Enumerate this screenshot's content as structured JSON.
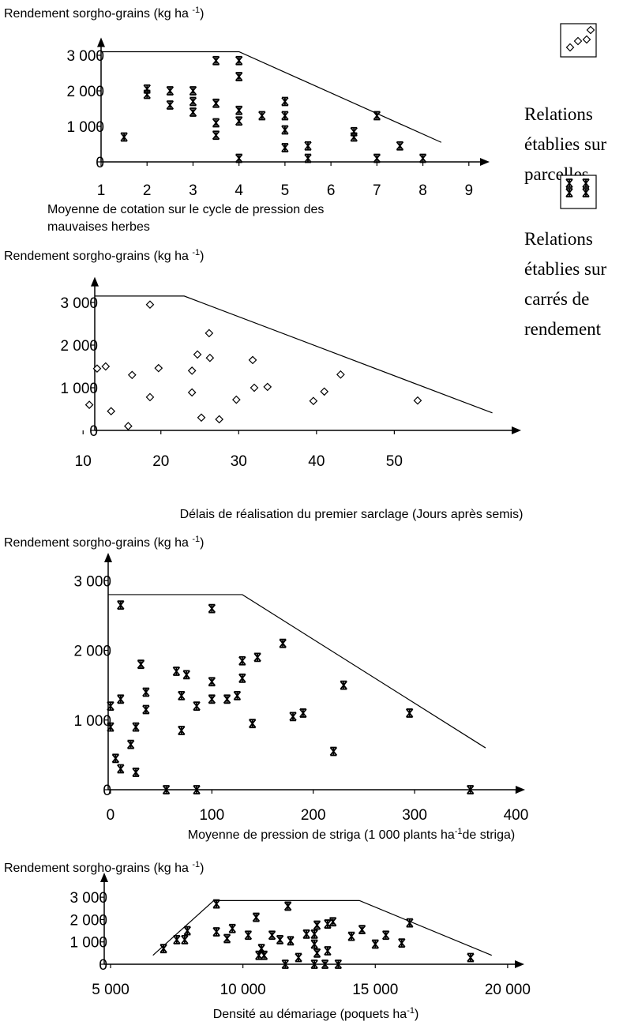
{
  "chart_data": [
    {
      "type": "scatter",
      "ylabel": [
        "Rendement sorgho-grains (kg ha ",
        "-1",
        ")"
      ],
      "xlabel": [
        [
          "Moyenne de cotation sur le cycle de pression des"
        ],
        [
          "mauvaises herbes"
        ]
      ],
      "xlim": [
        1,
        9.45
      ],
      "ylim": [
        0,
        3500
      ],
      "xticks": [
        1,
        2,
        3,
        4,
        5,
        6,
        7,
        8,
        9
      ],
      "yticks": [
        0,
        {
          "value": 1000,
          "label": "1 000"
        },
        {
          "value": 2000,
          "label": "2 000"
        },
        {
          "value": 3000,
          "label": "3 000"
        }
      ],
      "boundary": {
        "x": [
          1,
          4,
          8.4
        ],
        "y": [
          3100,
          3100,
          550
        ]
      },
      "series": [
        {
          "marker": "asterisk",
          "color": "#000000",
          "x": [
            1.5,
            2,
            2,
            2.5,
            2.5,
            3,
            3,
            3,
            3.5,
            3.5,
            3.5,
            3.5,
            4,
            4,
            4,
            4,
            4,
            4.5,
            5,
            5,
            5,
            5,
            5.5,
            5.5,
            6.5,
            6.5,
            7,
            7,
            7.5,
            8
          ],
          "y": [
            700,
            1900,
            2050,
            2000,
            1600,
            2000,
            1700,
            1400,
            2850,
            1650,
            1100,
            750,
            2850,
            2400,
            1450,
            1150,
            100,
            1300,
            1700,
            1300,
            900,
            400,
            450,
            100,
            850,
            700,
            1300,
            100,
            450,
            100
          ]
        }
      ]
    },
    {
      "type": "scatter",
      "ylabel": [
        "Rendement sorgho-grains (kg ha ",
        "-1",
        ")"
      ],
      "xlabel": [
        [
          "Délais de réalisation du premier sarclage (Jours après semis)"
        ]
      ],
      "xlim": [
        11.5,
        66.3
      ],
      "ylim": [
        0,
        3600
      ],
      "xticks": [
        10,
        20,
        30,
        40,
        50
      ],
      "yticks": [
        0,
        {
          "value": 1000,
          "label": "1 000"
        },
        {
          "value": 2000,
          "label": "2 000"
        },
        {
          "value": 3000,
          "label": "3 000"
        }
      ],
      "boundary": {
        "x": [
          11.5,
          23,
          62.6
        ],
        "y": [
          3150,
          3150,
          410
        ]
      },
      "series": [
        {
          "marker": "diamond",
          "color": "#000000",
          "x": [
            10.8,
            11.8,
            12.9,
            13.6,
            15.8,
            16.3,
            18.6,
            18.6,
            19.7,
            24,
            24,
            24.7,
            25.2,
            26.2,
            26.3,
            27.5,
            29.7,
            31.8,
            32,
            33.7,
            39.6,
            41,
            43.1,
            53
          ],
          "y": [
            600,
            1450,
            1500,
            450,
            100,
            1300,
            2950,
            780,
            1460,
            1400,
            890,
            1780,
            300,
            2280,
            1700,
            260,
            720,
            1650,
            1000,
            1020,
            690,
            910,
            1310,
            700
          ]
        }
      ]
    },
    {
      "type": "scatter",
      "ylabel": [
        "Rendement sorgho-grains (kg ha ",
        "-1",
        ")"
      ],
      "xlabel": [
        [
          "Moyenne de pression de striga (1 000 plants ha",
          "-1",
          "de striga)"
        ]
      ],
      "xlim": [
        -2.3,
        409
      ],
      "ylim": [
        0,
        3400
      ],
      "xticks": [
        0,
        100,
        200,
        300,
        400
      ],
      "yticks": [
        0,
        {
          "value": 1000,
          "label": "1 000"
        },
        {
          "value": 2000,
          "label": "2 000"
        },
        {
          "value": 3000,
          "label": "3 000"
        }
      ],
      "boundary": {
        "x": [
          -2.3,
          130,
          370
        ],
        "y": [
          2800,
          2800,
          600
        ]
      },
      "series": [
        {
          "marker": "asterisk",
          "color": "#000000",
          "x": [
            10,
            100,
            0,
            10,
            0,
            5,
            20,
            25,
            10,
            25,
            30,
            35,
            35,
            55,
            65,
            70,
            70,
            75,
            85,
            85,
            100,
            100,
            115,
            125,
            130,
            130,
            140,
            145,
            170,
            180,
            190,
            220,
            230,
            295,
            355
          ],
          "y": [
            2650,
            2600,
            1200,
            1300,
            900,
            450,
            650,
            900,
            300,
            250,
            1800,
            1400,
            1150,
            0,
            1700,
            1350,
            850,
            1650,
            1200,
            0,
            1550,
            1300,
            1300,
            1350,
            1600,
            1850,
            950,
            1900,
            2100,
            1050,
            1100,
            550,
            1500,
            1100,
            0
          ]
        }
      ]
    },
    {
      "type": "scatter",
      "ylabel": [
        "Rendement sorgho-grains (kg ha ",
        "-1",
        ")"
      ],
      "xlabel": [
        [
          "Densité au démariage (poquets ha",
          "-1",
          ")"
        ]
      ],
      "xlim": [
        4760,
        20630
      ],
      "ylim": [
        0,
        4100
      ],
      "xticks": [
        {
          "value": 5000,
          "label": "5 000"
        },
        {
          "value": 10000,
          "label": "10 000"
        },
        {
          "value": 15000,
          "label": "15 000"
        },
        {
          "value": 20000,
          "label": "20 000"
        }
      ],
      "yticks": [
        0,
        {
          "value": 1000,
          "label": "1 000"
        },
        {
          "value": 2000,
          "label": "2 000"
        },
        {
          "value": 3000,
          "label": "3 000"
        }
      ],
      "boundary": {
        "x": [
          6600,
          8900,
          14400,
          19400
        ],
        "y": [
          400,
          2850,
          2850,
          400
        ]
      },
      "series": [
        {
          "marker": "asterisk",
          "color": "#000000",
          "x": [
            7000,
            7500,
            7800,
            7900,
            9000,
            9000,
            9400,
            9600,
            10200,
            10500,
            10700,
            10600,
            10800,
            11100,
            11400,
            11700,
            11600,
            11800,
            12100,
            12400,
            12700,
            12700,
            12800,
            12800,
            12700,
            13100,
            13200,
            13400,
            13200,
            13600,
            14100,
            14500,
            15000,
            15400,
            16000,
            16300,
            18600
          ],
          "y": [
            700,
            1100,
            1100,
            1500,
            2700,
            1450,
            1150,
            1600,
            1300,
            2100,
            700,
            400,
            400,
            1300,
            1100,
            2600,
            0,
            1050,
            300,
            1350,
            1350,
            900,
            1750,
            500,
            0,
            0,
            1800,
            1900,
            600,
            0,
            1250,
            1550,
            900,
            1300,
            950,
            1850,
            300
          ]
        }
      ]
    }
  ],
  "legend": [
    {
      "marker": "diamond",
      "lines": [
        "Relations",
        "établies sur",
        "parcelles"
      ]
    },
    {
      "marker": "asterisk",
      "lines": [
        "Relations",
        "établies sur",
        "carrés de",
        "rendement"
      ]
    }
  ]
}
